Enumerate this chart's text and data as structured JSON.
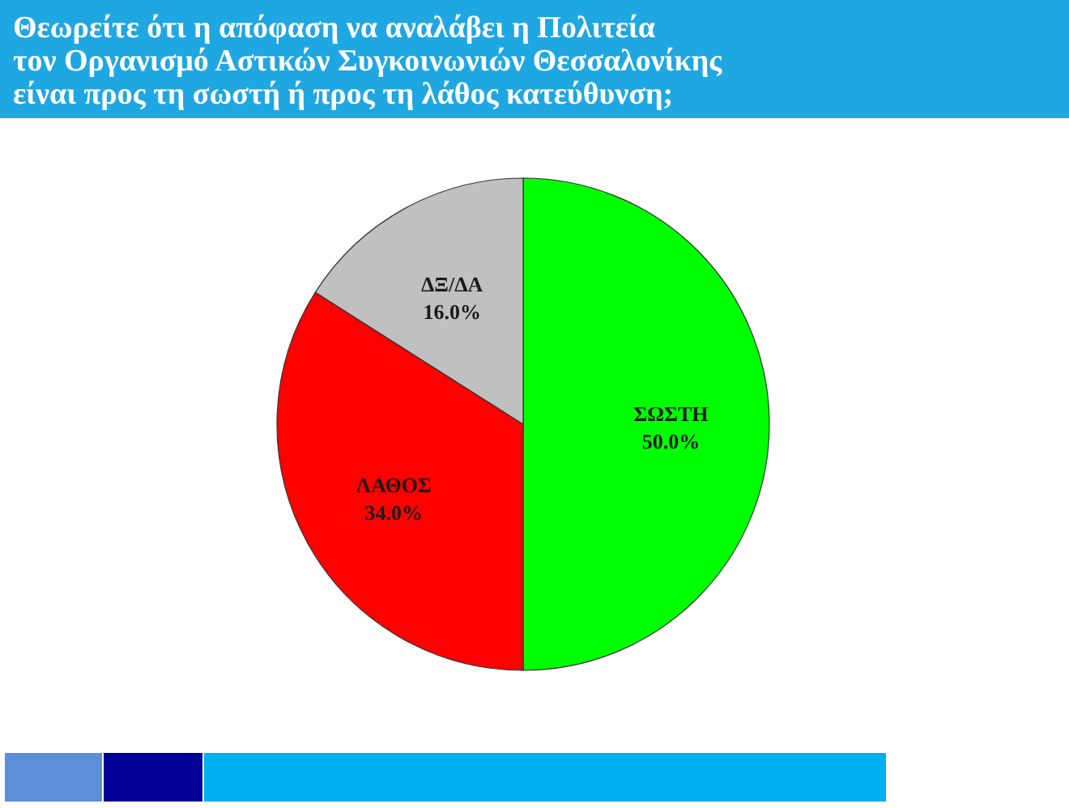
{
  "chart_data": {
    "type": "pie",
    "title": "Θεωρείτε ότι η απόφαση να αναλάβει η Πολιτεία\nτον Οργανισμό Αστικών Συγκοινωνιών Θεσσαλονίκης\nείναι προς τη σωστή ή προς τη λάθος κατεύθυνση;",
    "categories": [
      "ΣΩΣΤΗ",
      "ΛΑΘΟΣ",
      "ΔΞ/ΔΑ"
    ],
    "values": [
      50,
      34,
      16
    ],
    "colors": [
      "#00ff00",
      "#ff0000",
      "#c0c0c0"
    ],
    "value_labels": [
      "50.0%",
      "34.0%",
      "16.0%"
    ]
  }
}
